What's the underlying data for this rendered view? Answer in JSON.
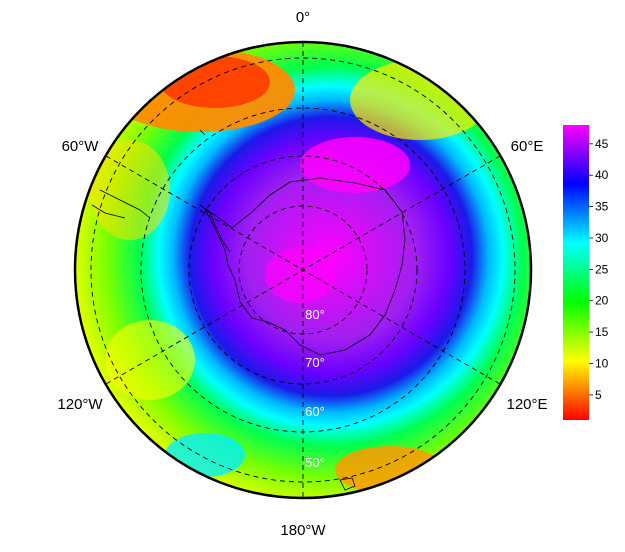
{
  "map": {
    "projection": "south-polar-stereographic",
    "longitude_labels": {
      "top": "0°",
      "upper_left": "60°W",
      "upper_right": "60°E",
      "lower_left": "120°W",
      "lower_right": "120°E",
      "bottom": "180°W"
    },
    "latitude_labels": [
      "80°",
      "70°",
      "60°",
      "50°"
    ]
  },
  "colorbar": {
    "ticks": [
      "45",
      "40",
      "35",
      "30",
      "25",
      "20",
      "15",
      "10",
      "5"
    ],
    "tick_values": [
      45,
      40,
      35,
      30,
      25,
      20,
      15,
      10,
      5
    ],
    "range": [
      1,
      48
    ],
    "colors": [
      "#ff0000",
      "#ff8000",
      "#ffff00",
      "#80ff00",
      "#00ff00",
      "#00ff80",
      "#00ffff",
      "#0080ff",
      "#0000ff",
      "#8000ff",
      "#ff00ff"
    ]
  }
}
